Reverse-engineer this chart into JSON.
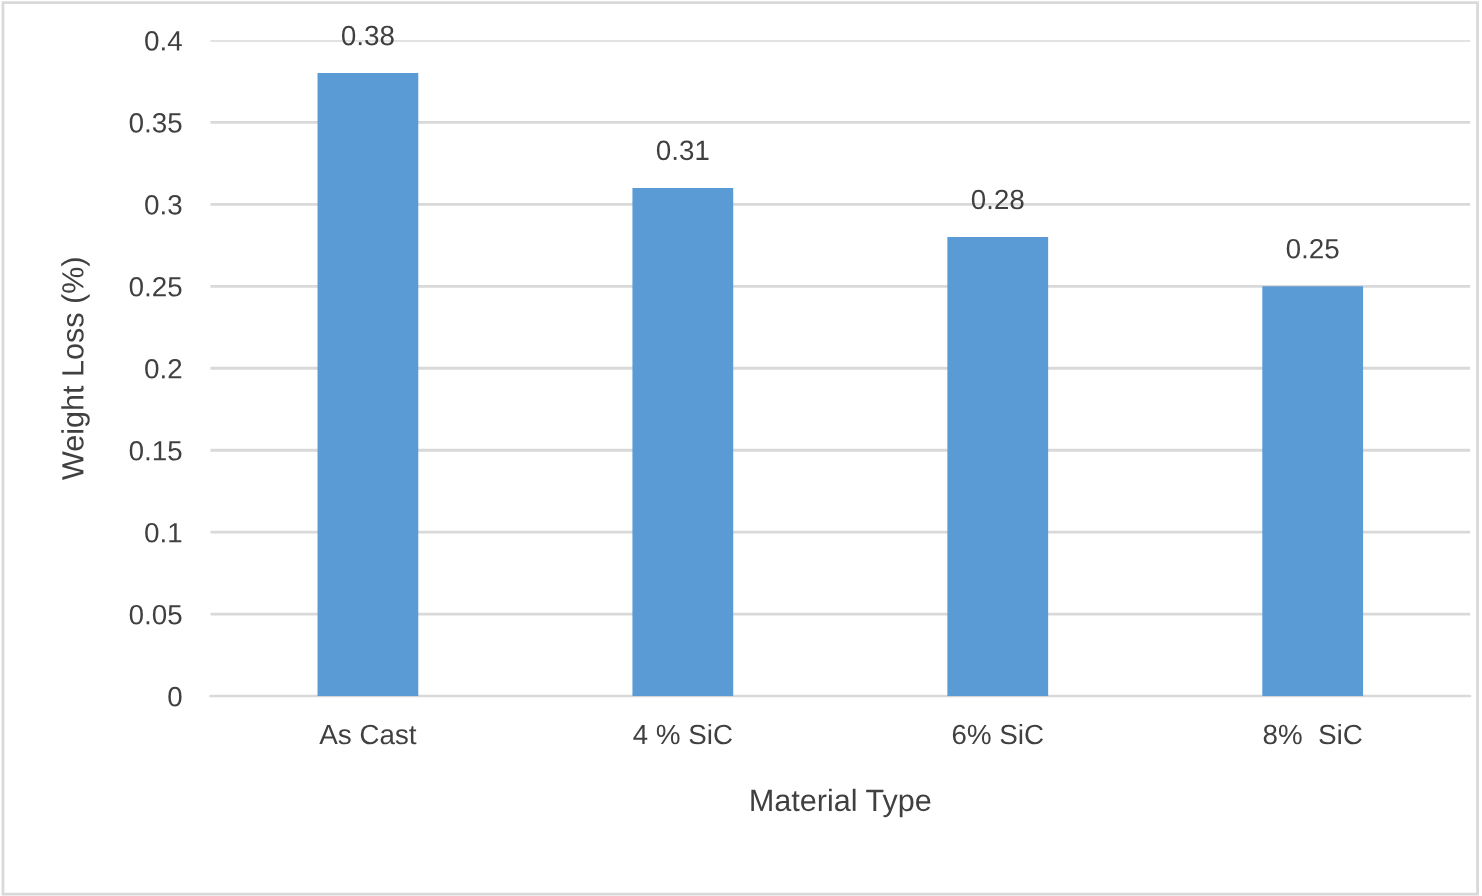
{
  "chart_data": {
    "type": "bar",
    "xlabel": "Material Type",
    "ylabel": "Weight Loss (%)",
    "categories": [
      "As Cast",
      "4 % SiC",
      "6% SiC",
      "8%  SiC"
    ],
    "values": [
      0.38,
      0.31,
      0.28,
      0.25
    ],
    "color": "#5b9bd5",
    "ylim": [
      0,
      0.4
    ],
    "yticks": [
      0,
      0.05,
      0.1,
      0.15,
      0.2,
      0.25,
      0.3,
      0.35,
      0.4
    ],
    "grid": "y",
    "data_labels": true
  }
}
